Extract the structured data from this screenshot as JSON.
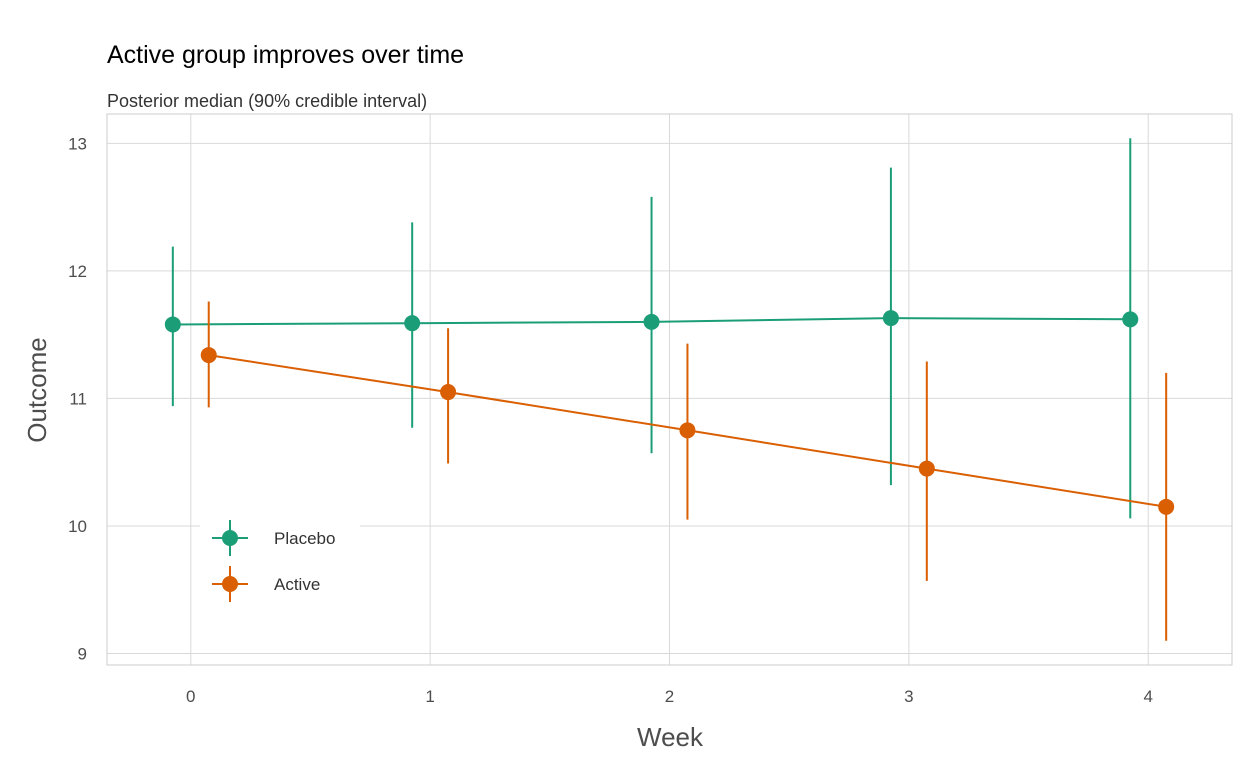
{
  "chart_data": {
    "type": "line",
    "title": "Active group improves over time",
    "subtitle": "Posterior median (90% credible interval)",
    "xlabel": "Week",
    "ylabel": "Outcome",
    "xlim": [
      -0.35,
      4.35
    ],
    "ylim": [
      8.91,
      13.23
    ],
    "x_ticks": [
      0,
      1,
      2,
      3,
      4
    ],
    "x_tick_labels": [
      "0",
      "1",
      "2",
      "3",
      "4"
    ],
    "y_ticks": [
      9,
      10,
      11,
      12,
      13
    ],
    "y_tick_labels": [
      "9",
      "10",
      "11",
      "12",
      "13"
    ],
    "grid": true,
    "legend_position": "bottom-left inside",
    "series": [
      {
        "name": "Placebo",
        "color": "#1b9e77",
        "offset": -0.075,
        "x": [
          0,
          1,
          2,
          3,
          4
        ],
        "median": [
          11.58,
          11.59,
          11.6,
          11.63,
          11.62
        ],
        "lower": [
          10.94,
          10.77,
          10.57,
          10.32,
          10.06
        ],
        "upper": [
          12.19,
          12.38,
          12.58,
          12.81,
          13.04
        ]
      },
      {
        "name": "Active",
        "color": "#d95f02",
        "offset": 0.075,
        "x": [
          0,
          1,
          2,
          3,
          4
        ],
        "median": [
          11.34,
          11.05,
          10.75,
          10.45,
          10.15
        ],
        "lower": [
          10.93,
          10.49,
          10.05,
          9.57,
          9.1
        ],
        "upper": [
          11.76,
          11.55,
          11.43,
          11.29,
          11.2
        ]
      }
    ]
  }
}
